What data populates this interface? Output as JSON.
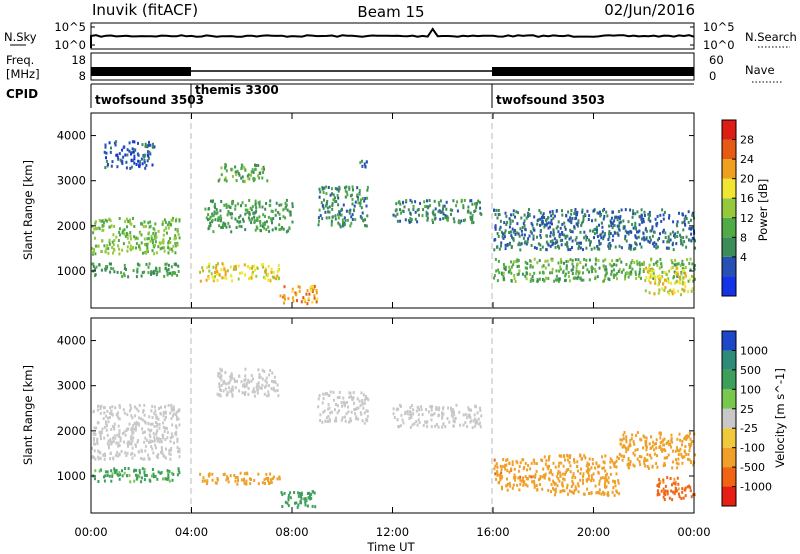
{
  "header": {
    "title": "Inuvik (fitACF)",
    "beam": "Beam 15",
    "date": "02/Jun/2016"
  },
  "top_panel": {
    "left_label": "N.Sky",
    "left_ticks": [
      "10^5",
      "10^0"
    ],
    "right_label": "N.Search",
    "right_ticks": [
      "10^5",
      "10^0"
    ]
  },
  "freq_panel": {
    "left_label_1": "Freq.",
    "left_label_2": "[MHz]",
    "left_ticks": [
      "18",
      "8"
    ],
    "right_label": "Nave",
    "right_ticks": [
      "60",
      "0"
    ]
  },
  "cpid": {
    "label": "CPID",
    "segments": [
      {
        "name": "twofsound 3503",
        "start_hour": 0,
        "end_hour": 4
      },
      {
        "name": "themis 3300",
        "start_hour": 4,
        "end_hour": 16
      },
      {
        "name": "twofsound 3503",
        "start_hour": 16,
        "end_hour": 24
      }
    ]
  },
  "power_panel": {
    "ylabel": "Slant Range [km]",
    "yticks": [
      "4000",
      "3000",
      "2000",
      "1000"
    ],
    "colorbar_label": "Power [dB]",
    "colorbar_ticks": [
      "28",
      "24",
      "20",
      "16",
      "12",
      "8",
      "4"
    ],
    "colors": [
      "#1432e6",
      "#2850b4",
      "#3c8c5a",
      "#50aa46",
      "#96c83c",
      "#f0e632",
      "#f0a01e",
      "#e65a14",
      "#dc1e14"
    ]
  },
  "velocity_panel": {
    "ylabel": "Slant Range [km]",
    "yticks": [
      "4000",
      "3000",
      "2000",
      "1000"
    ],
    "colorbar_label": "Velocity [m s^-1]",
    "colorbar_ticks": [
      "1000",
      "500",
      "100",
      "25",
      "-25",
      "-100",
      "-500",
      "-1000"
    ],
    "colors": [
      "#1e46c8",
      "#2d8c78",
      "#3ca05a",
      "#78c850",
      "#c8c8c8",
      "#f0c83c",
      "#f0a028",
      "#f06414",
      "#e61e14"
    ]
  },
  "xaxis": {
    "label": "Time UT",
    "ticks": [
      "00:00",
      "04:00",
      "08:00",
      "12:00",
      "16:00",
      "20:00",
      "00:00"
    ]
  },
  "chart_data": {
    "type": "heatmap",
    "x_range_hours": [
      0,
      24
    ],
    "y_range_km": [
      180,
      4500
    ],
    "title": "Beam 15",
    "xlabel": "Time UT",
    "ylabel": "Slant Range [km]",
    "regions_power": [
      {
        "t0": 0.0,
        "t1": 3.5,
        "r0": 1400,
        "r1": 2200,
        "db": 16
      },
      {
        "t0": 0.0,
        "t1": 3.5,
        "r0": 900,
        "r1": 1200,
        "db": 12
      },
      {
        "t0": 0.5,
        "t1": 2.5,
        "r0": 3300,
        "r1": 3900,
        "db": 6
      },
      {
        "t0": 4.3,
        "t1": 7.5,
        "r0": 800,
        "r1": 1200,
        "db": 22
      },
      {
        "t0": 7.5,
        "t1": 9.0,
        "r0": 300,
        "r1": 700,
        "db": 26
      },
      {
        "t0": 5.0,
        "t1": 7.0,
        "r0": 3000,
        "r1": 3400,
        "db": 14
      },
      {
        "t0": 4.5,
        "t1": 8.0,
        "r0": 1900,
        "r1": 2600,
        "db": 12
      },
      {
        "t0": 9.0,
        "t1": 11.0,
        "r0": 2000,
        "r1": 2900,
        "db": 10
      },
      {
        "t0": 10.5,
        "t1": 11.0,
        "r0": 3300,
        "r1": 3500,
        "db": 10
      },
      {
        "t0": 12.0,
        "t1": 15.5,
        "r0": 2100,
        "r1": 2600,
        "db": 10
      },
      {
        "t0": 16.0,
        "t1": 24.0,
        "r0": 800,
        "r1": 1300,
        "db": 14
      },
      {
        "t0": 16.0,
        "t1": 24.0,
        "r0": 1500,
        "r1": 2400,
        "db": 8
      },
      {
        "t0": 22.0,
        "t1": 24.0,
        "r0": 500,
        "r1": 1100,
        "db": 22
      }
    ],
    "regions_velocity": [
      {
        "t0": 0.0,
        "t1": 3.5,
        "r0": 1400,
        "r1": 2600,
        "v": 0
      },
      {
        "t0": 0.0,
        "t1": 3.5,
        "r0": 900,
        "r1": 1200,
        "v": 120
      },
      {
        "t0": 4.3,
        "t1": 7.5,
        "r0": 850,
        "r1": 1100,
        "v": -150
      },
      {
        "t0": 7.5,
        "t1": 9.0,
        "r0": 300,
        "r1": 700,
        "v": 200
      },
      {
        "t0": 5.0,
        "t1": 7.5,
        "r0": 2800,
        "r1": 3400,
        "v": 0
      },
      {
        "t0": 9.0,
        "t1": 11.0,
        "r0": 2200,
        "r1": 2900,
        "v": 0
      },
      {
        "t0": 12.0,
        "t1": 15.5,
        "r0": 2100,
        "r1": 2600,
        "v": 0
      },
      {
        "t0": 16.0,
        "t1": 18.0,
        "r0": 700,
        "r1": 1400,
        "v": -400
      },
      {
        "t0": 18.0,
        "t1": 21.0,
        "r0": 600,
        "r1": 1500,
        "v": -200
      },
      {
        "t0": 21.0,
        "t1": 24.0,
        "r0": 1200,
        "r1": 2000,
        "v": -300
      },
      {
        "t0": 22.5,
        "t1": 24.0,
        "r0": 500,
        "r1": 1000,
        "v": -600
      }
    ]
  }
}
